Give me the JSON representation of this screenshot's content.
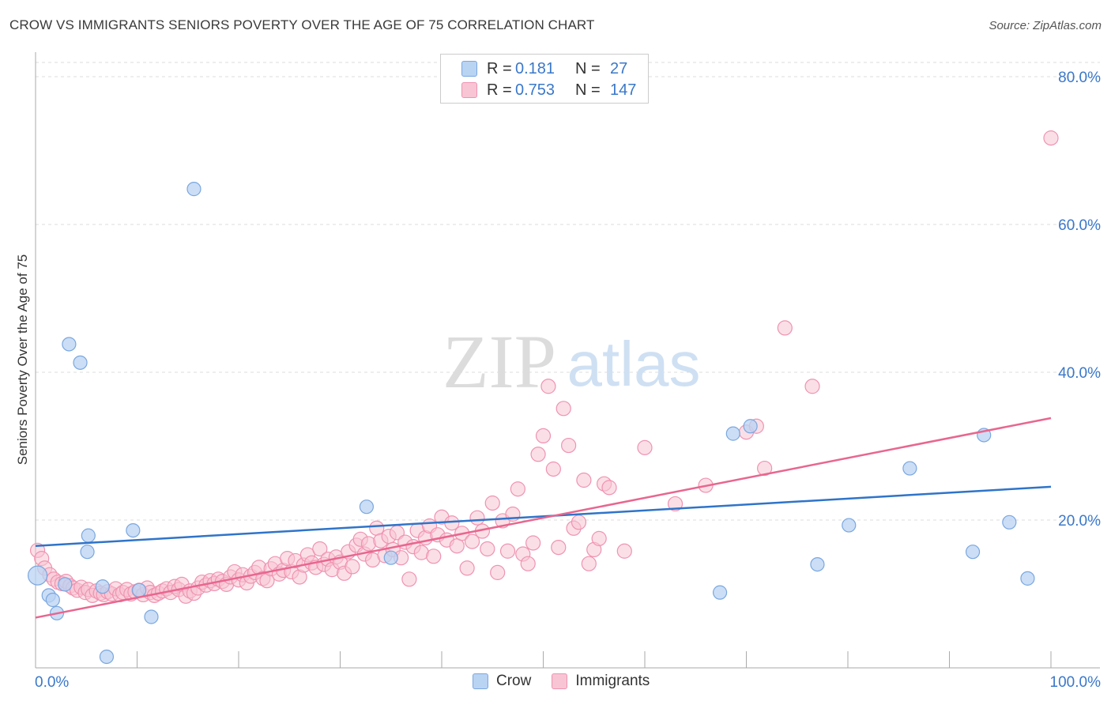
{
  "title": "CROW VS IMMIGRANTS SENIORS POVERTY OVER THE AGE OF 75 CORRELATION CHART",
  "source": "Source: ZipAtlas.com",
  "watermark": {
    "zip": "ZIP",
    "atlas": "atlas"
  },
  "legend": {
    "crow": {
      "r_label": "R =",
      "r_value": "0.181",
      "n_label": "N =",
      "n_value": "27"
    },
    "immigrants": {
      "r_label": "R =",
      "r_value": "0.753",
      "n_label": "N =",
      "n_value": "147"
    }
  },
  "bottom_legend": {
    "crow": "Crow",
    "immigrants": "Immigrants"
  },
  "colors": {
    "crow_fill": "#b9d3f3",
    "crow_stroke": "#7aa7df",
    "crow_line": "#2f74c9",
    "imm_fill": "#f8c5d4",
    "imm_stroke": "#ef93b1",
    "imm_line": "#e8668f",
    "axis_label": "#3a78c9",
    "grid": "#dddddd"
  },
  "chart_data": {
    "type": "scatter",
    "title": "CROW VS IMMIGRANTS SENIORS POVERTY OVER THE AGE OF 75 CORRELATION CHART",
    "xlabel": "",
    "ylabel": "Seniors Poverty Over the Age of 75",
    "xlim": [
      0,
      100
    ],
    "ylim": [
      0,
      80
    ],
    "x_tick_labels": [
      "0.0%",
      "100.0%"
    ],
    "y_ticks": [
      20,
      40,
      60,
      80
    ],
    "y_tick_labels": [
      "20.0%",
      "40.0%",
      "60.0%",
      "80.0%"
    ],
    "grid": true,
    "legend_position": "top-center",
    "series": [
      {
        "name": "Crow",
        "trend": {
          "x": [
            0,
            100
          ],
          "y": [
            16.5,
            24.5
          ]
        },
        "points": [
          [
            0.2,
            12.5
          ],
          [
            1.3,
            9.8
          ],
          [
            1.7,
            9.2
          ],
          [
            2.1,
            7.4
          ],
          [
            2.9,
            11.3
          ],
          [
            3.3,
            43.8
          ],
          [
            4.4,
            41.3
          ],
          [
            5.1,
            15.7
          ],
          [
            5.2,
            17.9
          ],
          [
            6.6,
            11.0
          ],
          [
            7.0,
            1.5
          ],
          [
            9.6,
            18.6
          ],
          [
            10.2,
            10.5
          ],
          [
            11.4,
            6.9
          ],
          [
            15.6,
            64.8
          ],
          [
            32.6,
            21.8
          ],
          [
            35.0,
            14.9
          ],
          [
            67.4,
            10.2
          ],
          [
            68.7,
            31.7
          ],
          [
            70.4,
            32.7
          ],
          [
            77.0,
            14.0
          ],
          [
            80.1,
            19.3
          ],
          [
            86.1,
            27.0
          ],
          [
            92.3,
            15.7
          ],
          [
            93.4,
            31.5
          ],
          [
            95.9,
            19.7
          ],
          [
            97.7,
            12.1
          ]
        ]
      },
      {
        "name": "Immigrants",
        "trend": {
          "x": [
            0,
            100
          ],
          "y": [
            6.8,
            33.8
          ]
        },
        "points": [
          [
            0.2,
            15.9
          ],
          [
            0.6,
            14.8
          ],
          [
            0.9,
            13.5
          ],
          [
            1.4,
            12.6
          ],
          [
            1.8,
            12.0
          ],
          [
            2.2,
            11.6
          ],
          [
            2.6,
            11.4
          ],
          [
            3.0,
            11.7
          ],
          [
            3.4,
            11.1
          ],
          [
            3.7,
            10.8
          ],
          [
            4.1,
            10.5
          ],
          [
            4.5,
            10.9
          ],
          [
            4.9,
            10.2
          ],
          [
            5.2,
            10.6
          ],
          [
            5.6,
            9.8
          ],
          [
            6.0,
            10.4
          ],
          [
            6.4,
            10.1
          ],
          [
            6.7,
            9.9
          ],
          [
            7.1,
            10.3
          ],
          [
            7.5,
            10.0
          ],
          [
            7.9,
            10.7
          ],
          [
            8.3,
            9.9
          ],
          [
            8.6,
            10.2
          ],
          [
            9.0,
            10.6
          ],
          [
            9.4,
            10.0
          ],
          [
            9.8,
            10.3
          ],
          [
            10.2,
            10.5
          ],
          [
            10.6,
            9.9
          ],
          [
            11.0,
            10.8
          ],
          [
            11.3,
            10.2
          ],
          [
            11.7,
            9.8
          ],
          [
            12.1,
            10.1
          ],
          [
            12.5,
            10.4
          ],
          [
            12.9,
            10.7
          ],
          [
            13.3,
            10.2
          ],
          [
            13.7,
            11.0
          ],
          [
            14.1,
            10.6
          ],
          [
            14.4,
            11.3
          ],
          [
            14.8,
            9.7
          ],
          [
            15.2,
            10.4
          ],
          [
            15.6,
            10.1
          ],
          [
            16.0,
            10.8
          ],
          [
            16.4,
            11.6
          ],
          [
            16.8,
            11.2
          ],
          [
            17.2,
            11.8
          ],
          [
            17.6,
            11.4
          ],
          [
            18.0,
            12.0
          ],
          [
            18.4,
            11.7
          ],
          [
            18.8,
            11.3
          ],
          [
            19.2,
            12.3
          ],
          [
            19.6,
            13.0
          ],
          [
            20.0,
            11.9
          ],
          [
            20.4,
            12.6
          ],
          [
            20.8,
            11.5
          ],
          [
            21.2,
            12.4
          ],
          [
            21.6,
            12.9
          ],
          [
            22.0,
            13.6
          ],
          [
            22.4,
            12.1
          ],
          [
            22.8,
            11.8
          ],
          [
            23.2,
            13.4
          ],
          [
            23.6,
            14.1
          ],
          [
            24.0,
            12.7
          ],
          [
            24.4,
            13.2
          ],
          [
            24.8,
            14.8
          ],
          [
            25.2,
            13.0
          ],
          [
            25.6,
            14.5
          ],
          [
            26.0,
            12.3
          ],
          [
            26.4,
            13.9
          ],
          [
            26.8,
            15.3
          ],
          [
            27.2,
            14.2
          ],
          [
            27.6,
            13.6
          ],
          [
            28.0,
            16.1
          ],
          [
            28.4,
            14.0
          ],
          [
            28.8,
            14.7
          ],
          [
            29.2,
            13.3
          ],
          [
            29.6,
            15.0
          ],
          [
            30.0,
            14.3
          ],
          [
            30.4,
            12.8
          ],
          [
            30.8,
            15.7
          ],
          [
            31.2,
            13.7
          ],
          [
            31.6,
            16.6
          ],
          [
            32.0,
            17.4
          ],
          [
            32.4,
            15.4
          ],
          [
            32.8,
            16.8
          ],
          [
            33.2,
            14.6
          ],
          [
            33.6,
            18.9
          ],
          [
            34.0,
            17.2
          ],
          [
            34.4,
            15.2
          ],
          [
            34.8,
            17.8
          ],
          [
            35.2,
            16.0
          ],
          [
            35.6,
            18.3
          ],
          [
            36.0,
            14.9
          ],
          [
            36.4,
            17.0
          ],
          [
            36.8,
            12.0
          ],
          [
            37.2,
            16.4
          ],
          [
            37.6,
            18.6
          ],
          [
            38.0,
            15.6
          ],
          [
            38.4,
            17.6
          ],
          [
            38.8,
            19.2
          ],
          [
            39.2,
            15.1
          ],
          [
            39.6,
            18.0
          ],
          [
            40.0,
            20.4
          ],
          [
            40.5,
            17.3
          ],
          [
            41.0,
            19.6
          ],
          [
            41.5,
            16.5
          ],
          [
            42.0,
            18.2
          ],
          [
            42.5,
            13.5
          ],
          [
            43.0,
            17.1
          ],
          [
            43.5,
            20.3
          ],
          [
            44.0,
            18.5
          ],
          [
            44.5,
            16.1
          ],
          [
            45.0,
            22.3
          ],
          [
            45.5,
            12.9
          ],
          [
            46.0,
            19.9
          ],
          [
            46.5,
            15.8
          ],
          [
            47.0,
            20.8
          ],
          [
            47.5,
            24.2
          ],
          [
            48.0,
            15.4
          ],
          [
            48.5,
            14.1
          ],
          [
            49.0,
            16.9
          ],
          [
            49.5,
            28.9
          ],
          [
            50.0,
            31.4
          ],
          [
            50.5,
            38.1
          ],
          [
            51.0,
            26.9
          ],
          [
            51.5,
            16.3
          ],
          [
            52.0,
            35.1
          ],
          [
            52.5,
            30.1
          ],
          [
            53.0,
            18.9
          ],
          [
            53.5,
            19.7
          ],
          [
            54.0,
            25.4
          ],
          [
            54.5,
            14.1
          ],
          [
            55.0,
            16.0
          ],
          [
            55.5,
            17.5
          ],
          [
            56.0,
            24.9
          ],
          [
            56.5,
            24.4
          ],
          [
            58.0,
            15.8
          ],
          [
            60.0,
            29.8
          ],
          [
            63.0,
            22.2
          ],
          [
            66.0,
            24.7
          ],
          [
            70.0,
            31.9
          ],
          [
            71.0,
            32.7
          ],
          [
            71.8,
            27.0
          ],
          [
            73.8,
            46.0
          ],
          [
            76.5,
            38.1
          ],
          [
            100.0,
            71.7
          ]
        ]
      }
    ]
  }
}
